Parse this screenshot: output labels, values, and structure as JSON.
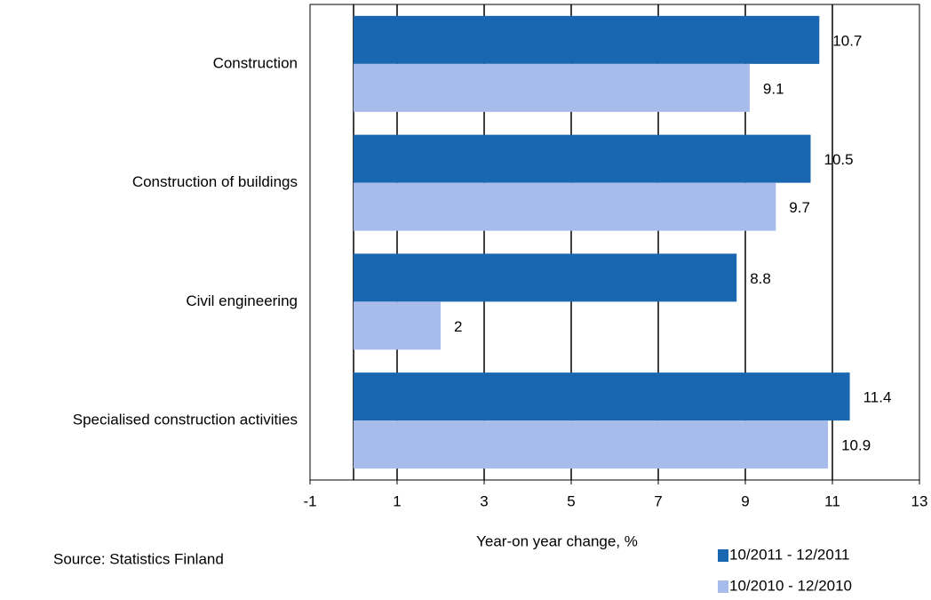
{
  "chart_data": {
    "type": "barh",
    "categories": [
      "Construction",
      "Construction of buildings",
      "Civil engineering",
      "Specialised construction activities"
    ],
    "series": [
      {
        "name": "10/2011 - 12/2011",
        "color": "#1a67b1",
        "values": [
          10.7,
          10.5,
          8.8,
          11.4
        ]
      },
      {
        "name": "10/2010 - 12/2010",
        "color": "#a7bceb",
        "values": [
          9.1,
          9.7,
          2.0,
          10.9
        ]
      }
    ],
    "xlim": [
      -1,
      13
    ],
    "xticks": [
      -1,
      1,
      3,
      5,
      7,
      9,
      11,
      13
    ],
    "grid": true,
    "xlabel": "Year-on year change, %",
    "annotation": "Source: Statistics Finland",
    "legend": "bottom-right"
  }
}
